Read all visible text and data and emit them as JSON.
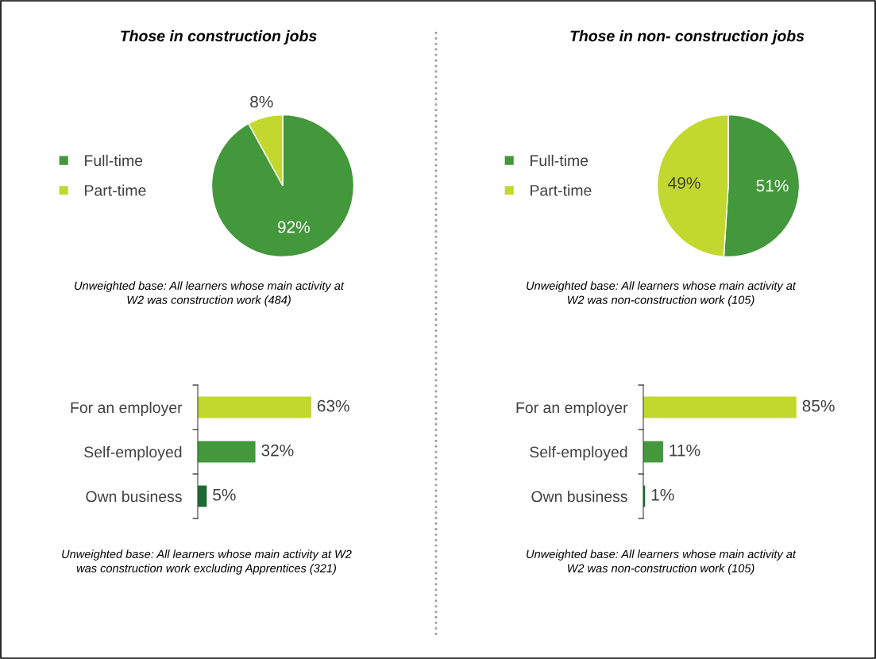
{
  "chart_data": [
    {
      "type": "pie",
      "title": "Those in construction jobs",
      "categories": [
        "Full-time",
        "Part-time"
      ],
      "values": [
        92,
        8
      ],
      "colors": [
        "#43983b",
        "#c3d82e"
      ],
      "value_labels": [
        "92%",
        "8%"
      ],
      "legend": "left",
      "annotations": [
        "Unweighted base: All learners whose main activity at\nW2 was construction work (484)"
      ]
    },
    {
      "type": "pie",
      "title": "Those in non- construction jobs",
      "categories": [
        "Full-time",
        "Part-time"
      ],
      "values": [
        51,
        49
      ],
      "colors": [
        "#43983b",
        "#c3d82e"
      ],
      "value_labels": [
        "51%",
        "49%"
      ],
      "legend": "left",
      "annotations": [
        "Unweighted base: All learners whose main activity at\nW2 was non-construction work (105)"
      ]
    },
    {
      "type": "bar",
      "orientation": "horizontal",
      "categories": [
        "For an employer",
        "Self-employed",
        "Own business"
      ],
      "values": [
        63,
        32,
        5
      ],
      "colors": [
        "#c3d82e",
        "#43983b",
        "#1d6a33"
      ],
      "value_labels": [
        "63%",
        "32%",
        "5%"
      ],
      "annotations": [
        "Unweighted base: All learners whose main activity at W2\nwas construction work excluding Apprentices (321)"
      ]
    },
    {
      "type": "bar",
      "orientation": "horizontal",
      "categories": [
        "For an employer",
        "Self-employed",
        "Own business"
      ],
      "values": [
        85,
        11,
        1
      ],
      "colors": [
        "#c3d82e",
        "#43983b",
        "#1d6a33"
      ],
      "value_labels": [
        "85%",
        "11%",
        "1%"
      ],
      "annotations": [
        "Unweighted base: All learners whose main activity at\nW2 was non-construction work (105)"
      ]
    }
  ]
}
